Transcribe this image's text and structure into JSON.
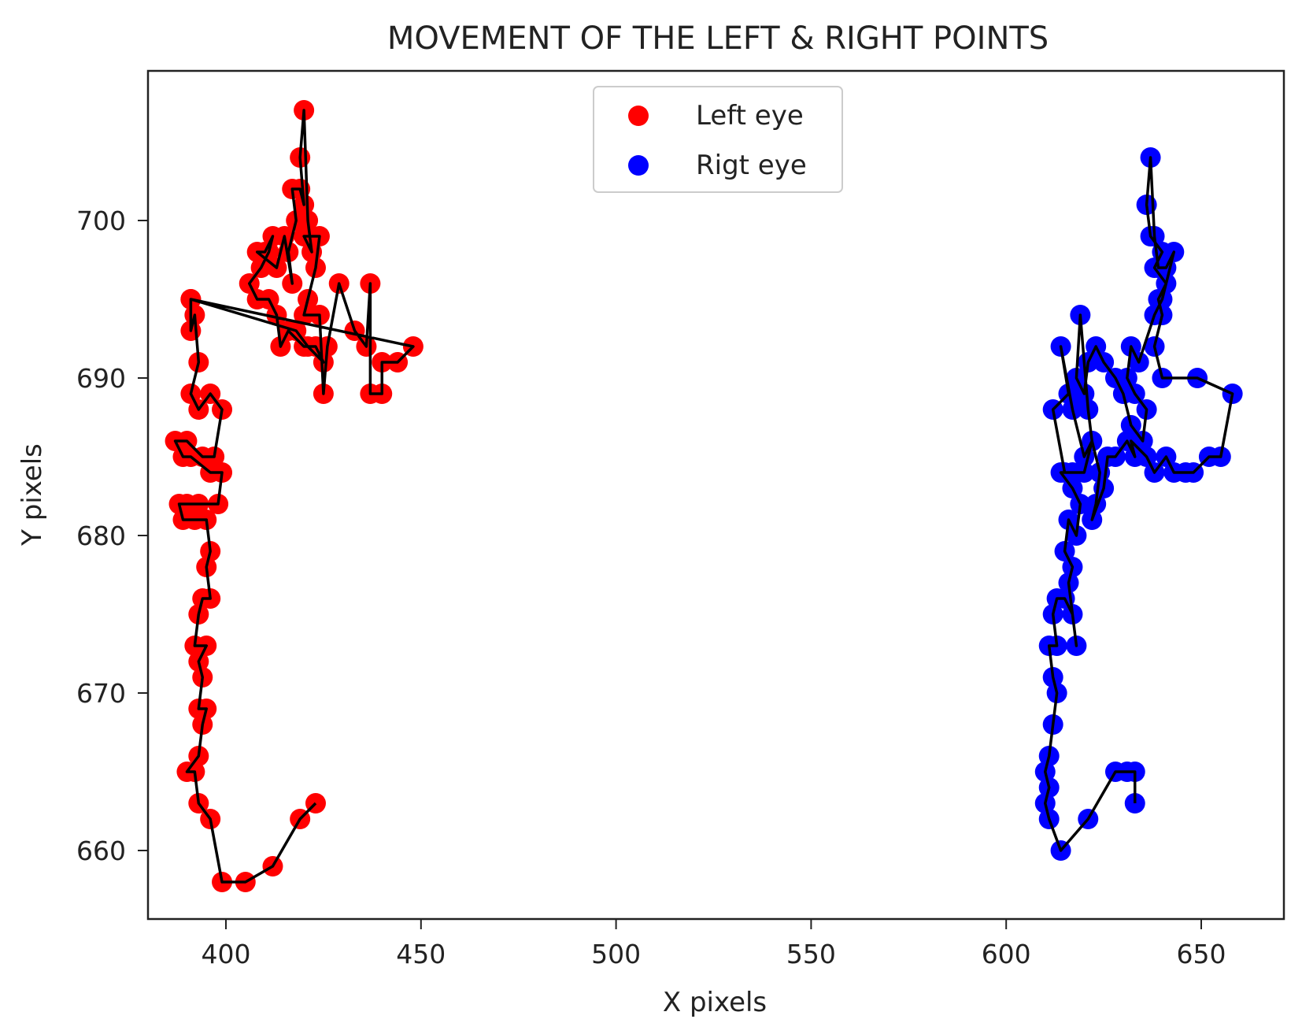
{
  "chart_data": {
    "type": "scatter",
    "title": "MOVEMENT OF THE LEFT & RIGHT POINTS",
    "xlabel": "X pixels",
    "ylabel": "Y pixels",
    "xlim": [
      372,
      670
    ],
    "ylim": [
      655,
      709
    ],
    "xticks": [
      400,
      450,
      500,
      550,
      600,
      650
    ],
    "yticks": [
      660,
      670,
      680,
      690,
      700
    ],
    "grid": false,
    "legend_position": "upper center",
    "line_color": "#000000",
    "series": [
      {
        "name": "Left eye",
        "color": "#ff0000",
        "connected": true,
        "points": [
          [
            423,
            663
          ],
          [
            419,
            662
          ],
          [
            412,
            659
          ],
          [
            405,
            658
          ],
          [
            399,
            658
          ],
          [
            396,
            662
          ],
          [
            393,
            663
          ],
          [
            392,
            665
          ],
          [
            390,
            665
          ],
          [
            393,
            666
          ],
          [
            394,
            668
          ],
          [
            395,
            669
          ],
          [
            393,
            669
          ],
          [
            394,
            671
          ],
          [
            393,
            672
          ],
          [
            395,
            673
          ],
          [
            392,
            673
          ],
          [
            393,
            675
          ],
          [
            394,
            676
          ],
          [
            396,
            676
          ],
          [
            395,
            678
          ],
          [
            396,
            679
          ],
          [
            395,
            681
          ],
          [
            392,
            681
          ],
          [
            389,
            681
          ],
          [
            388,
            682
          ],
          [
            390,
            682
          ],
          [
            393,
            682
          ],
          [
            398,
            682
          ],
          [
            399,
            684
          ],
          [
            396,
            684
          ],
          [
            391,
            685
          ],
          [
            389,
            685
          ],
          [
            387,
            686
          ],
          [
            390,
            686
          ],
          [
            394,
            685
          ],
          [
            397,
            685
          ],
          [
            399,
            688
          ],
          [
            396,
            689
          ],
          [
            393,
            688
          ],
          [
            391,
            689
          ],
          [
            393,
            691
          ],
          [
            392,
            694
          ],
          [
            391,
            693
          ],
          [
            391,
            695
          ],
          [
            418,
            693
          ],
          [
            421,
            692
          ],
          [
            425,
            691
          ],
          [
            423,
            692
          ],
          [
            420,
            692
          ],
          [
            416,
            693
          ],
          [
            414,
            692
          ],
          [
            413,
            694
          ],
          [
            411,
            695
          ],
          [
            408,
            695
          ],
          [
            406,
            696
          ],
          [
            409,
            697
          ],
          [
            411,
            698
          ],
          [
            412,
            699
          ],
          [
            410,
            698
          ],
          [
            408,
            698
          ],
          [
            413,
            697
          ],
          [
            415,
            699
          ],
          [
            417,
            696
          ],
          [
            416,
            698
          ],
          [
            418,
            700
          ],
          [
            417,
            702
          ],
          [
            419,
            702
          ],
          [
            420,
            701
          ],
          [
            419,
            704
          ],
          [
            420,
            707
          ],
          [
            421,
            700
          ],
          [
            422,
            698
          ],
          [
            420,
            699
          ],
          [
            424,
            699
          ],
          [
            423,
            697
          ],
          [
            421,
            695
          ],
          [
            420,
            694
          ],
          [
            424,
            694
          ],
          [
            425,
            689
          ],
          [
            426,
            692
          ],
          [
            429,
            696
          ],
          [
            433,
            693
          ],
          [
            436,
            692
          ],
          [
            437,
            696
          ],
          [
            437,
            689
          ],
          [
            440,
            689
          ],
          [
            440,
            691
          ],
          [
            444,
            691
          ],
          [
            448,
            692
          ],
          [
            391,
            695
          ]
        ]
      },
      {
        "name": "Rigt eye",
        "color": "#0000ff",
        "connected": true,
        "points": [
          [
            633,
            663
          ],
          [
            633,
            665
          ],
          [
            631,
            665
          ],
          [
            628,
            665
          ],
          [
            621,
            662
          ],
          [
            614,
            660
          ],
          [
            611,
            662
          ],
          [
            610,
            663
          ],
          [
            611,
            664
          ],
          [
            610,
            665
          ],
          [
            611,
            666
          ],
          [
            612,
            668
          ],
          [
            613,
            670
          ],
          [
            612,
            671
          ],
          [
            611,
            673
          ],
          [
            613,
            673
          ],
          [
            612,
            675
          ],
          [
            613,
            676
          ],
          [
            615,
            676
          ],
          [
            617,
            675
          ],
          [
            618,
            673
          ],
          [
            616,
            677
          ],
          [
            617,
            678
          ],
          [
            615,
            679
          ],
          [
            616,
            681
          ],
          [
            618,
            680
          ],
          [
            619,
            682
          ],
          [
            617,
            683
          ],
          [
            614,
            684
          ],
          [
            617,
            684
          ],
          [
            620,
            684
          ],
          [
            622,
            686
          ],
          [
            624,
            684
          ],
          [
            623,
            682
          ],
          [
            622,
            681
          ],
          [
            625,
            683
          ],
          [
            626,
            685
          ],
          [
            628,
            685
          ],
          [
            631,
            686
          ],
          [
            633,
            685
          ],
          [
            632,
            686
          ],
          [
            636,
            685
          ],
          [
            638,
            684
          ],
          [
            641,
            685
          ],
          [
            643,
            684
          ],
          [
            646,
            684
          ],
          [
            648,
            684
          ],
          [
            652,
            685
          ],
          [
            655,
            685
          ],
          [
            658,
            689
          ],
          [
            649,
            690
          ],
          [
            640,
            690
          ],
          [
            638,
            692
          ],
          [
            640,
            694
          ],
          [
            639,
            695
          ],
          [
            641,
            696
          ],
          [
            638,
            697
          ],
          [
            640,
            698
          ],
          [
            637,
            699
          ],
          [
            636,
            701
          ],
          [
            637,
            704
          ],
          [
            638,
            699
          ],
          [
            639,
            697
          ],
          [
            641,
            697
          ],
          [
            643,
            698
          ],
          [
            640,
            695
          ],
          [
            638,
            694
          ],
          [
            634,
            691
          ],
          [
            632,
            692
          ],
          [
            631,
            690
          ],
          [
            633,
            689
          ],
          [
            636,
            688
          ],
          [
            635,
            686
          ],
          [
            632,
            687
          ],
          [
            630,
            689
          ],
          [
            628,
            690
          ],
          [
            625,
            691
          ],
          [
            623,
            692
          ],
          [
            621,
            691
          ],
          [
            620,
            689
          ],
          [
            618,
            690
          ],
          [
            619,
            694
          ],
          [
            621,
            688
          ],
          [
            622,
            686
          ],
          [
            620,
            685
          ],
          [
            617,
            688
          ],
          [
            614,
            692
          ],
          [
            616,
            689
          ],
          [
            612,
            688
          ],
          [
            615,
            684
          ]
        ]
      }
    ],
    "legend": [
      {
        "label": "Left eye",
        "color": "#ff0000",
        "marker": "circle"
      },
      {
        "label": "Rigt eye",
        "color": "#0000ff",
        "marker": "circle"
      }
    ]
  }
}
